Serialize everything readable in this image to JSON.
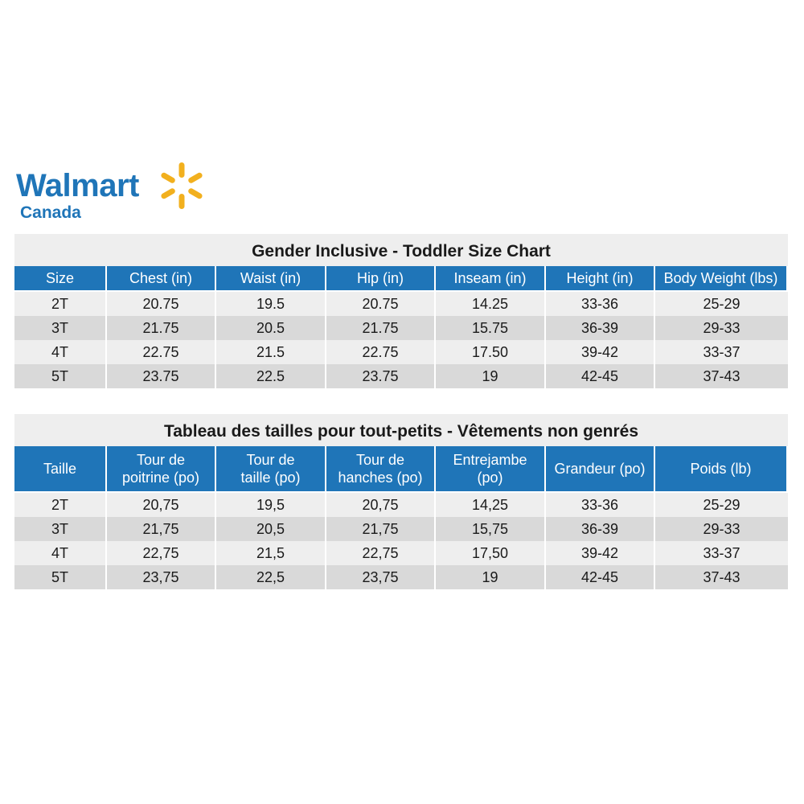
{
  "brand": {
    "name": "Walmart",
    "region": "Canada",
    "colors": {
      "blue": "#1f75b8",
      "yellow": "#f2b01e"
    }
  },
  "table_en": {
    "title": "Gender Inclusive - Toddler  Size Chart",
    "headers": [
      "Size",
      "Chest (in)",
      "Waist (in)",
      "Hip (in)",
      "Inseam (in)",
      "Height (in)",
      "Body Weight (lbs)"
    ],
    "rows": [
      [
        "2T",
        "20.75",
        "19.5",
        "20.75",
        "14.25",
        "33-36",
        "25-29"
      ],
      [
        "3T",
        "21.75",
        "20.5",
        "21.75",
        "15.75",
        "36-39",
        "29-33"
      ],
      [
        "4T",
        "22.75",
        "21.5",
        "22.75",
        "17.50",
        "39-42",
        "33-37"
      ],
      [
        "5T",
        "23.75",
        "22.5",
        "23.75",
        "19",
        "42-45",
        "37-43"
      ]
    ]
  },
  "table_fr": {
    "title": "Tableau des tailles pour tout-petits - Vêtements non genrés",
    "headers": [
      "Taille",
      "Tour de\npoitrine (po)",
      "Tour de\ntaille (po)",
      "Tour de\nhanches (po)",
      "Entrejambe\n(po)",
      "Grandeur (po)",
      "Poids (lb)"
    ],
    "rows": [
      [
        "2T",
        "20,75",
        "19,5",
        "20,75",
        "14,25",
        "33-36",
        "25-29"
      ],
      [
        "3T",
        "21,75",
        "20,5",
        "21,75",
        "15,75",
        "36-39",
        "29-33"
      ],
      [
        "4T",
        "22,75",
        "21,5",
        "22,75",
        "17,50",
        "39-42",
        "33-37"
      ],
      [
        "5T",
        "23,75",
        "22,5",
        "23,75",
        "19",
        "42-45",
        "37-43"
      ]
    ]
  }
}
